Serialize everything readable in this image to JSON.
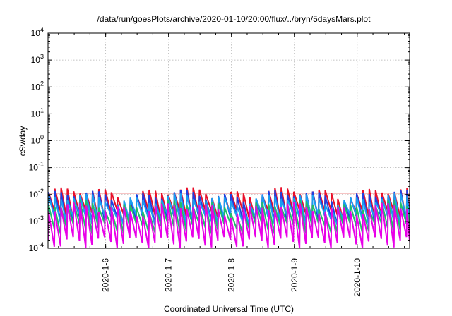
{
  "chart_data": {
    "type": "line",
    "title": "/data/run/goesPlots/archive/2020-01-10/20:00/flux/../bryn/5daysMars.plot",
    "xlabel": "Coordinated Universal Time (UTC)",
    "ylabel": "cSv/day",
    "yscale": "log",
    "ylim": [
      0.0001,
      10000
    ],
    "xlim": [
      "2020-01-05T02:00",
      "2020-01-10T20:00"
    ],
    "grid": true,
    "legend": "none",
    "x_ticks": [
      {
        "value": "2020-01-06T00:00",
        "label": "2020-1-6"
      },
      {
        "value": "2020-01-07T00:00",
        "label": "2020-1-7"
      },
      {
        "value": "2020-01-08T00:00",
        "label": "2020-1-8"
      },
      {
        "value": "2020-01-09T00:00",
        "label": "2020-1-9"
      },
      {
        "value": "2020-01-10T00:00",
        "label": "2020-1-10"
      }
    ],
    "y_ticks": [
      {
        "value": 0.0001,
        "base": "10",
        "exp": "-4"
      },
      {
        "value": 0.001,
        "base": "10",
        "exp": "-3"
      },
      {
        "value": 0.01,
        "base": "10",
        "exp": "-2"
      },
      {
        "value": 0.1,
        "base": "10",
        "exp": "-1"
      },
      {
        "value": 1,
        "base": "10",
        "exp": "0"
      },
      {
        "value": 10,
        "base": "10",
        "exp": "1"
      },
      {
        "value": 100,
        "base": "10",
        "exp": "2"
      },
      {
        "value": 1000,
        "base": "10",
        "exp": "3"
      },
      {
        "value": 10000,
        "base": "10",
        "exp": "4"
      }
    ],
    "series_pattern": {
      "cycle_hours": 2.4,
      "start": "2020-01-05T02:00",
      "end": "2020-01-10T20:00"
    },
    "series": [
      {
        "color": "#e8102a",
        "peak": 0.012,
        "trough": 0.0018
      },
      {
        "color": "#1f3fe0",
        "peak": 0.0095,
        "trough": 0.0011
      },
      {
        "color": "#1a9ef0",
        "peak": 0.007,
        "trough": 0.0013
      },
      {
        "color": "#1fbf6a",
        "peak": 0.004,
        "trough": 0.0006
      },
      {
        "color": "#e800e8",
        "peak": 0.0032,
        "trough": 0.00018
      }
    ],
    "reference_lines": [
      {
        "color": "#f0a0a0",
        "value": 0.011
      }
    ]
  }
}
